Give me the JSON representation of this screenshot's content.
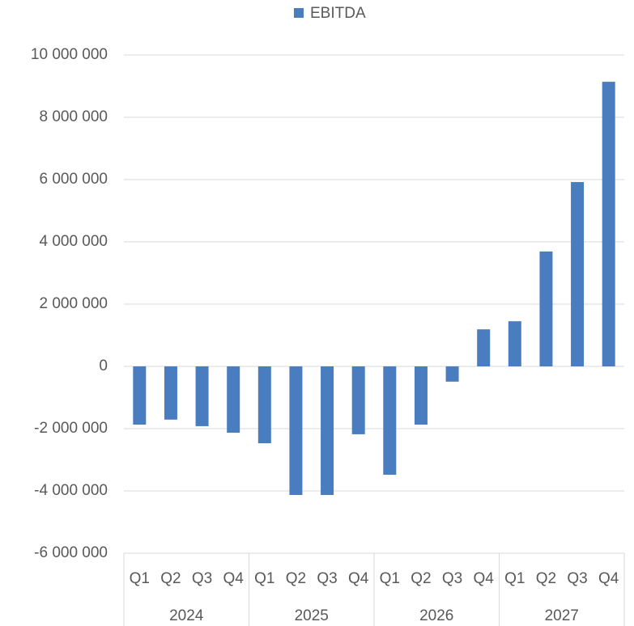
{
  "chart_data": {
    "type": "bar",
    "series": [
      {
        "name": "EBITDA",
        "color": "#4a7dc0",
        "values": [
          -1870000,
          -1710000,
          -1920000,
          -2130000,
          -2470000,
          -4130000,
          -4130000,
          -2180000,
          -3480000,
          -1870000,
          -490000,
          1190000,
          1450000,
          3690000,
          5920000,
          9140000
        ]
      }
    ],
    "categories": [
      "Q1",
      "Q2",
      "Q3",
      "Q4",
      "Q1",
      "Q2",
      "Q3",
      "Q4",
      "Q1",
      "Q2",
      "Q3",
      "Q4",
      "Q1",
      "Q2",
      "Q3",
      "Q4"
    ],
    "groups": [
      "2024",
      "2025",
      "2026",
      "2027"
    ],
    "ylim": [
      -6000000,
      10000000
    ],
    "yticks": [
      {
        "value": -6000000,
        "label": "-6 000 000"
      },
      {
        "value": -4000000,
        "label": "-4 000 000"
      },
      {
        "value": -2000000,
        "label": "-2 000 000"
      },
      0,
      {
        "value": 2000000,
        "label": "2 000 000"
      },
      {
        "value": 4000000,
        "label": "4 000 000"
      },
      {
        "value": 6000000,
        "label": "6 000 000"
      },
      {
        "value": 8000000,
        "label": "8 000 000"
      },
      {
        "value": 10000000,
        "label": "10 000 000"
      }
    ],
    "grid": true,
    "legend": "top"
  }
}
